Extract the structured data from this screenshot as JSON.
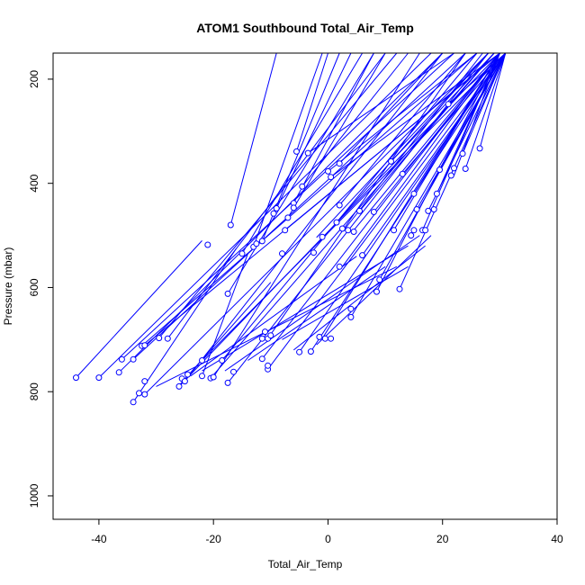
{
  "chart_data": {
    "type": "line",
    "title": "ATOM1 Southbound Total_Air_Temp",
    "xlabel": "Total_Air_Temp",
    "ylabel": "Pressure (mbar)",
    "xlim": [
      -48,
      40
    ],
    "ylim": [
      1045,
      150
    ],
    "y_reversed": true,
    "xticks": [
      -40,
      -20,
      0,
      20,
      40
    ],
    "yticks": [
      200,
      400,
      600,
      800,
      1000
    ],
    "grid": false,
    "legend": "none",
    "point_style": "open-circle",
    "color": "#0000ff",
    "series": [
      {
        "x": [
          -44,
          -22
        ],
        "y": [
          773,
          510
        ]
      },
      {
        "x": [
          -40,
          18
        ],
        "y": [
          773,
          150
        ]
      },
      {
        "x": [
          -36.5,
          20
        ],
        "y": [
          763,
          150
        ]
      },
      {
        "x": [
          -36,
          22
        ],
        "y": [
          738,
          150
        ]
      },
      {
        "x": [
          -34,
          24
        ],
        "y": [
          738,
          150
        ]
      },
      {
        "x": [
          -34,
          -16
        ],
        "y": [
          820,
          525
        ]
      },
      {
        "x": [
          -32.5,
          26
        ],
        "y": [
          712,
          150
        ]
      },
      {
        "x": [
          -32,
          30
        ],
        "y": [
          711,
          150
        ]
      },
      {
        "x": [
          -32,
          28
        ],
        "y": [
          805,
          150
        ]
      },
      {
        "x": [
          -29.5,
          12
        ],
        "y": [
          697,
          150
        ]
      },
      {
        "x": [
          -28,
          10
        ],
        "y": [
          698,
          150
        ]
      },
      {
        "x": [
          -26,
          30
        ],
        "y": [
          790,
          150
        ]
      },
      {
        "x": [
          -25,
          20
        ],
        "y": [
          780,
          150
        ]
      },
      {
        "x": [
          -22,
          31
        ],
        "y": [
          740,
          150
        ]
      },
      {
        "x": [
          -22,
          -14
        ],
        "y": [
          770,
          535
        ]
      },
      {
        "x": [
          -20.5,
          29
        ],
        "y": [
          774,
          150
        ]
      },
      {
        "x": [
          -20,
          16
        ],
        "y": [
          772,
          150
        ]
      },
      {
        "x": [
          -18.5,
          26
        ],
        "y": [
          740,
          150
        ]
      },
      {
        "x": [
          -17.5,
          28
        ],
        "y": [
          783,
          150
        ]
      },
      {
        "x": [
          -17.5,
          8
        ],
        "y": [
          612,
          150
        ]
      },
      {
        "x": [
          -17,
          -9
        ],
        "y": [
          480,
          150
        ]
      },
      {
        "x": [
          -15,
          6
        ],
        "y": [
          535,
          150
        ]
      },
      {
        "x": [
          -13,
          -1
        ],
        "y": [
          522,
          150
        ]
      },
      {
        "x": [
          -11.5,
          30
        ],
        "y": [
          737,
          150
        ]
      },
      {
        "x": [
          -11.5,
          2
        ],
        "y": [
          511,
          150
        ]
      },
      {
        "x": [
          -10.5,
          24
        ],
        "y": [
          698,
          150
        ]
      },
      {
        "x": [
          -10.5,
          31
        ],
        "y": [
          757,
          150
        ]
      },
      {
        "x": [
          -9,
          4
        ],
        "y": [
          448,
          150
        ]
      },
      {
        "x": [
          -7.5,
          30
        ],
        "y": [
          490,
          150
        ]
      },
      {
        "x": [
          -7,
          10
        ],
        "y": [
          466,
          150
        ]
      },
      {
        "x": [
          -6,
          8
        ],
        "y": [
          438,
          150
        ]
      },
      {
        "x": [
          -5.5,
          0
        ],
        "y": [
          339,
          150
        ]
      },
      {
        "x": [
          -5,
          31
        ],
        "y": [
          724,
          150
        ]
      },
      {
        "x": [
          -4.5,
          14
        ],
        "y": [
          406,
          150
        ]
      },
      {
        "x": [
          -3.5,
          22
        ],
        "y": [
          342,
          150
        ]
      },
      {
        "x": [
          -3,
          31
        ],
        "y": [
          723,
          150
        ]
      },
      {
        "x": [
          -2,
          28
        ],
        "y": [
          504,
          150
        ]
      },
      {
        "x": [
          -1,
          30
        ],
        "y": [
          698,
          150
        ]
      },
      {
        "x": [
          0,
          26
        ],
        "y": [
          377,
          150
        ]
      },
      {
        "x": [
          0.5,
          30
        ],
        "y": [
          388,
          150
        ]
      },
      {
        "x": [
          1.5,
          28
        ],
        "y": [
          475,
          150
        ]
      },
      {
        "x": [
          2,
          24
        ],
        "y": [
          442,
          150
        ]
      },
      {
        "x": [
          2,
          20
        ],
        "y": [
          362,
          150
        ]
      },
      {
        "x": [
          2.5,
          30
        ],
        "y": [
          560,
          150
        ]
      },
      {
        "x": [
          3,
          27
        ],
        "y": [
          487,
          150
        ]
      },
      {
        "x": [
          4,
          31
        ],
        "y": [
          657,
          150
        ]
      },
      {
        "x": [
          4.5,
          30
        ],
        "y": [
          490,
          150
        ]
      },
      {
        "x": [
          5.5,
          29
        ],
        "y": [
          453,
          150
        ]
      },
      {
        "x": [
          6,
          31
        ],
        "y": [
          538,
          150
        ]
      },
      {
        "x": [
          8,
          30
        ],
        "y": [
          455,
          150
        ]
      },
      {
        "x": [
          8.5,
          30
        ],
        "y": [
          608,
          150
        ]
      },
      {
        "x": [
          9,
          31
        ],
        "y": [
          585,
          150
        ]
      },
      {
        "x": [
          11,
          29
        ],
        "y": [
          358,
          150
        ]
      },
      {
        "x": [
          11.5,
          30
        ],
        "y": [
          490,
          150
        ]
      },
      {
        "x": [
          12.5,
          31
        ],
        "y": [
          603,
          150
        ]
      },
      {
        "x": [
          13,
          31
        ],
        "y": [
          382,
          150
        ]
      },
      {
        "x": [
          15,
          30
        ],
        "y": [
          420,
          150
        ]
      },
      {
        "x": [
          15.5,
          31
        ],
        "y": [
          450,
          150
        ]
      },
      {
        "x": [
          16.5,
          30
        ],
        "y": [
          490,
          150
        ]
      },
      {
        "x": [
          17.5,
          31
        ],
        "y": [
          453,
          150
        ]
      },
      {
        "x": [
          19,
          30
        ],
        "y": [
          420,
          150
        ]
      },
      {
        "x": [
          19.5,
          31
        ],
        "y": [
          374,
          150
        ]
      },
      {
        "x": [
          21,
          31
        ],
        "y": [
          248,
          150
        ]
      },
      {
        "x": [
          22,
          30
        ],
        "y": [
          385,
          150
        ]
      },
      {
        "x": [
          23.5,
          31
        ],
        "y": [
          343,
          150
        ]
      },
      {
        "x": [
          24,
          31
        ],
        "y": [
          372,
          150
        ]
      },
      {
        "x": [
          26.5,
          31
        ],
        "y": [
          333,
          150
        ]
      },
      {
        "x": [
          -26,
          -10
        ],
        "y": [
          788,
          590
        ]
      },
      {
        "x": [
          -24,
          5
        ],
        "y": [
          770,
          540
        ]
      },
      {
        "x": [
          -30,
          12
        ],
        "y": [
          790,
          560
        ]
      },
      {
        "x": [
          -22,
          14
        ],
        "y": [
          760,
          520
        ]
      },
      {
        "x": [
          -18,
          16
        ],
        "y": [
          760,
          500
        ]
      },
      {
        "x": [
          -14,
          10
        ],
        "y": [
          740,
          560
        ]
      },
      {
        "x": [
          -8,
          14
        ],
        "y": [
          700,
          560
        ]
      },
      {
        "x": [
          -6,
          17
        ],
        "y": [
          720,
          520
        ]
      },
      {
        "x": [
          -2,
          18
        ],
        "y": [
          710,
          500
        ]
      }
    ],
    "markers": [
      {
        "x": -44,
        "y": 773
      },
      {
        "x": -40,
        "y": 773
      },
      {
        "x": -36.5,
        "y": 763
      },
      {
        "x": -36,
        "y": 738
      },
      {
        "x": -34,
        "y": 738
      },
      {
        "x": -34,
        "y": 820
      },
      {
        "x": -33,
        "y": 803
      },
      {
        "x": -32.5,
        "y": 712
      },
      {
        "x": -32,
        "y": 711
      },
      {
        "x": -32,
        "y": 805
      },
      {
        "x": -32,
        "y": 780
      },
      {
        "x": -29.5,
        "y": 697
      },
      {
        "x": -28,
        "y": 698
      },
      {
        "x": -26,
        "y": 790
      },
      {
        "x": -25.5,
        "y": 775
      },
      {
        "x": -25,
        "y": 780
      },
      {
        "x": -24.5,
        "y": 767
      },
      {
        "x": -22,
        "y": 740
      },
      {
        "x": -22,
        "y": 770
      },
      {
        "x": -21,
        "y": 518
      },
      {
        "x": -20.5,
        "y": 774
      },
      {
        "x": -20,
        "y": 772
      },
      {
        "x": -18.5,
        "y": 740
      },
      {
        "x": -17.5,
        "y": 783
      },
      {
        "x": -17.5,
        "y": 612
      },
      {
        "x": -17,
        "y": 480
      },
      {
        "x": -16.5,
        "y": 762
      },
      {
        "x": -15,
        "y": 535
      },
      {
        "x": -13,
        "y": 522
      },
      {
        "x": -12.5,
        "y": 516
      },
      {
        "x": -11.5,
        "y": 737
      },
      {
        "x": -11.5,
        "y": 511
      },
      {
        "x": -11.5,
        "y": 698
      },
      {
        "x": -11,
        "y": 685
      },
      {
        "x": -10.5,
        "y": 698
      },
      {
        "x": -10.5,
        "y": 757
      },
      {
        "x": -10.5,
        "y": 750
      },
      {
        "x": -9.5,
        "y": 458
      },
      {
        "x": -9,
        "y": 448
      },
      {
        "x": -8,
        "y": 535
      },
      {
        "x": -7.5,
        "y": 490
      },
      {
        "x": -7,
        "y": 466
      },
      {
        "x": -6,
        "y": 438
      },
      {
        "x": -6,
        "y": 447
      },
      {
        "x": -5.5,
        "y": 339
      },
      {
        "x": -5,
        "y": 724
      },
      {
        "x": -4.5,
        "y": 406
      },
      {
        "x": -3.5,
        "y": 342
      },
      {
        "x": -3,
        "y": 723
      },
      {
        "x": -2.5,
        "y": 533
      },
      {
        "x": -1,
        "y": 503
      },
      {
        "x": -0.5,
        "y": 698
      },
      {
        "x": 0,
        "y": 377
      },
      {
        "x": 0.5,
        "y": 388
      },
      {
        "x": 0.5,
        "y": 698
      },
      {
        "x": 1.5,
        "y": 475
      },
      {
        "x": 2,
        "y": 442
      },
      {
        "x": 2,
        "y": 362
      },
      {
        "x": 2,
        "y": 560
      },
      {
        "x": 2.5,
        "y": 487
      },
      {
        "x": 3.5,
        "y": 490
      },
      {
        "x": 4,
        "y": 657
      },
      {
        "x": 4,
        "y": 641
      },
      {
        "x": 4.5,
        "y": 493
      },
      {
        "x": 5.5,
        "y": 453
      },
      {
        "x": 6,
        "y": 538
      },
      {
        "x": 8,
        "y": 455
      },
      {
        "x": 8.5,
        "y": 608
      },
      {
        "x": 9,
        "y": 585
      },
      {
        "x": 11,
        "y": 358
      },
      {
        "x": 11.5,
        "y": 490
      },
      {
        "x": 12.5,
        "y": 603
      },
      {
        "x": 13,
        "y": 382
      },
      {
        "x": 14.5,
        "y": 500
      },
      {
        "x": 15,
        "y": 420
      },
      {
        "x": 15,
        "y": 490
      },
      {
        "x": 15.5,
        "y": 450
      },
      {
        "x": 16.5,
        "y": 490
      },
      {
        "x": 17,
        "y": 490
      },
      {
        "x": 17.5,
        "y": 453
      },
      {
        "x": 18.5,
        "y": 450
      },
      {
        "x": 19,
        "y": 420
      },
      {
        "x": 19.5,
        "y": 374
      },
      {
        "x": 21,
        "y": 248
      },
      {
        "x": 21.5,
        "y": 385
      },
      {
        "x": 22,
        "y": 371
      },
      {
        "x": 23.5,
        "y": 343
      },
      {
        "x": 24,
        "y": 372
      },
      {
        "x": 26.5,
        "y": 333
      },
      {
        "x": -10,
        "y": 692
      },
      {
        "x": -1.5,
        "y": 695
      }
    ]
  }
}
